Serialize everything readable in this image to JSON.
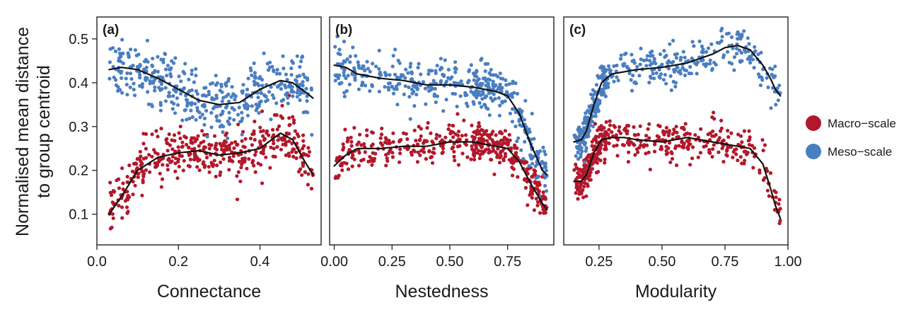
{
  "figure": {
    "ylabel_lines": [
      "Normalised mean distance",
      "to group centroid"
    ]
  },
  "legend": [
    {
      "label": "Macro−scale",
      "color": "#b2182b"
    },
    {
      "label": "Meso−scale",
      "color": "#4a7ec2"
    }
  ],
  "chart_data": [
    {
      "type": "scatter",
      "panel_label": "(a)",
      "xlabel": "Connectance",
      "ylabel": "Normalised mean distance to group centroid",
      "xlim": [
        0,
        0.55
      ],
      "ylim": [
        0.03,
        0.55
      ],
      "x_ticks": [
        0.0,
        0.2,
        0.4
      ],
      "x_tick_labels": [
        "0.0",
        "0.2",
        "0.4"
      ],
      "y_ticks": [
        0.1,
        0.2,
        0.3,
        0.4,
        0.5
      ],
      "y_tick_labels": [
        "0.1",
        "0.2",
        "0.3",
        "0.4",
        "0.5"
      ],
      "x_range": [
        0.03,
        0.53
      ],
      "series": [
        {
          "name": "Macro−scale",
          "color": "#b2182b",
          "n_points": 420,
          "trend": {
            "x": [
              0.03,
              0.06,
              0.1,
              0.15,
              0.2,
              0.25,
              0.3,
              0.35,
              0.4,
              0.45,
              0.48,
              0.51,
              0.53
            ],
            "y": [
              0.1,
              0.14,
              0.2,
              0.23,
              0.24,
              0.245,
              0.235,
              0.24,
              0.25,
              0.285,
              0.27,
              0.22,
              0.19
            ]
          }
        },
        {
          "name": "Meso−scale",
          "color": "#4a7ec2",
          "n_points": 420,
          "trend": {
            "x": [
              0.03,
              0.06,
              0.1,
              0.15,
              0.2,
              0.25,
              0.3,
              0.35,
              0.4,
              0.45,
              0.48,
              0.51,
              0.53
            ],
            "y": [
              0.43,
              0.435,
              0.43,
              0.41,
              0.385,
              0.36,
              0.35,
              0.355,
              0.385,
              0.405,
              0.4,
              0.38,
              0.365
            ]
          }
        }
      ]
    },
    {
      "type": "scatter",
      "panel_label": "(b)",
      "xlabel": "Nestedness",
      "ylabel": "Normalised mean distance to group centroid",
      "xlim": [
        -0.02,
        0.95
      ],
      "ylim": [
        0.03,
        0.55
      ],
      "x_ticks": [
        0.0,
        0.25,
        0.5,
        0.75
      ],
      "x_tick_labels": [
        "0.00",
        "0.25",
        "0.50",
        "0.75"
      ],
      "y_ticks": [
        0.1,
        0.2,
        0.3,
        0.4,
        0.5
      ],
      "y_tick_labels": [
        "0.1",
        "0.2",
        "0.3",
        "0.4",
        "0.5"
      ],
      "x_range": [
        0.0,
        0.92
      ],
      "series": [
        {
          "name": "Macro−scale",
          "color": "#b2182b",
          "n_points": 420,
          "trend": {
            "x": [
              0.0,
              0.05,
              0.1,
              0.2,
              0.3,
              0.4,
              0.5,
              0.6,
              0.7,
              0.75,
              0.8,
              0.85,
              0.9,
              0.92
            ],
            "y": [
              0.21,
              0.235,
              0.25,
              0.25,
              0.255,
              0.255,
              0.265,
              0.265,
              0.255,
              0.25,
              0.22,
              0.17,
              0.125,
              0.11
            ]
          }
        },
        {
          "name": "Meso−scale",
          "color": "#4a7ec2",
          "n_points": 420,
          "trend": {
            "x": [
              0.0,
              0.05,
              0.1,
              0.2,
              0.3,
              0.4,
              0.5,
              0.6,
              0.7,
              0.75,
              0.8,
              0.85,
              0.9,
              0.92
            ],
            "y": [
              0.44,
              0.435,
              0.42,
              0.41,
              0.405,
              0.395,
              0.395,
              0.39,
              0.38,
              0.37,
              0.33,
              0.26,
              0.2,
              0.19
            ]
          }
        }
      ]
    },
    {
      "type": "scatter",
      "panel_label": "(c)",
      "xlabel": "Modularity",
      "ylabel": "Normalised mean distance to group centroid",
      "xlim": [
        0.11,
        1.0
      ],
      "ylim": [
        0.03,
        0.55
      ],
      "x_ticks": [
        0.25,
        0.5,
        0.75,
        1.0
      ],
      "x_tick_labels": [
        "0.25",
        "0.50",
        "0.75",
        "1.00"
      ],
      "y_ticks": [
        0.1,
        0.2,
        0.3,
        0.4,
        0.5
      ],
      "y_tick_labels": [
        "0.1",
        "0.2",
        "0.3",
        "0.4",
        "0.5"
      ],
      "x_range": [
        0.15,
        0.97
      ],
      "series": [
        {
          "name": "Macro−scale",
          "color": "#b2182b",
          "n_points": 420,
          "trend": {
            "x": [
              0.15,
              0.18,
              0.2,
              0.23,
              0.26,
              0.3,
              0.35,
              0.4,
              0.5,
              0.6,
              0.7,
              0.8,
              0.85,
              0.9,
              0.93,
              0.95,
              0.97
            ],
            "y": [
              0.175,
              0.175,
              0.19,
              0.24,
              0.27,
              0.275,
              0.275,
              0.27,
              0.265,
              0.275,
              0.265,
              0.255,
              0.25,
              0.215,
              0.16,
              0.12,
              0.09
            ]
          }
        },
        {
          "name": "Meso−scale",
          "color": "#4a7ec2",
          "n_points": 420,
          "trend": {
            "x": [
              0.15,
              0.18,
              0.2,
              0.23,
              0.26,
              0.3,
              0.35,
              0.4,
              0.5,
              0.6,
              0.7,
              0.75,
              0.8,
              0.85,
              0.9,
              0.93,
              0.95,
              0.97
            ],
            "y": [
              0.265,
              0.27,
              0.29,
              0.35,
              0.4,
              0.42,
              0.425,
              0.43,
              0.435,
              0.445,
              0.465,
              0.48,
              0.485,
              0.475,
              0.44,
              0.41,
              0.385,
              0.37
            ]
          }
        }
      ]
    }
  ]
}
